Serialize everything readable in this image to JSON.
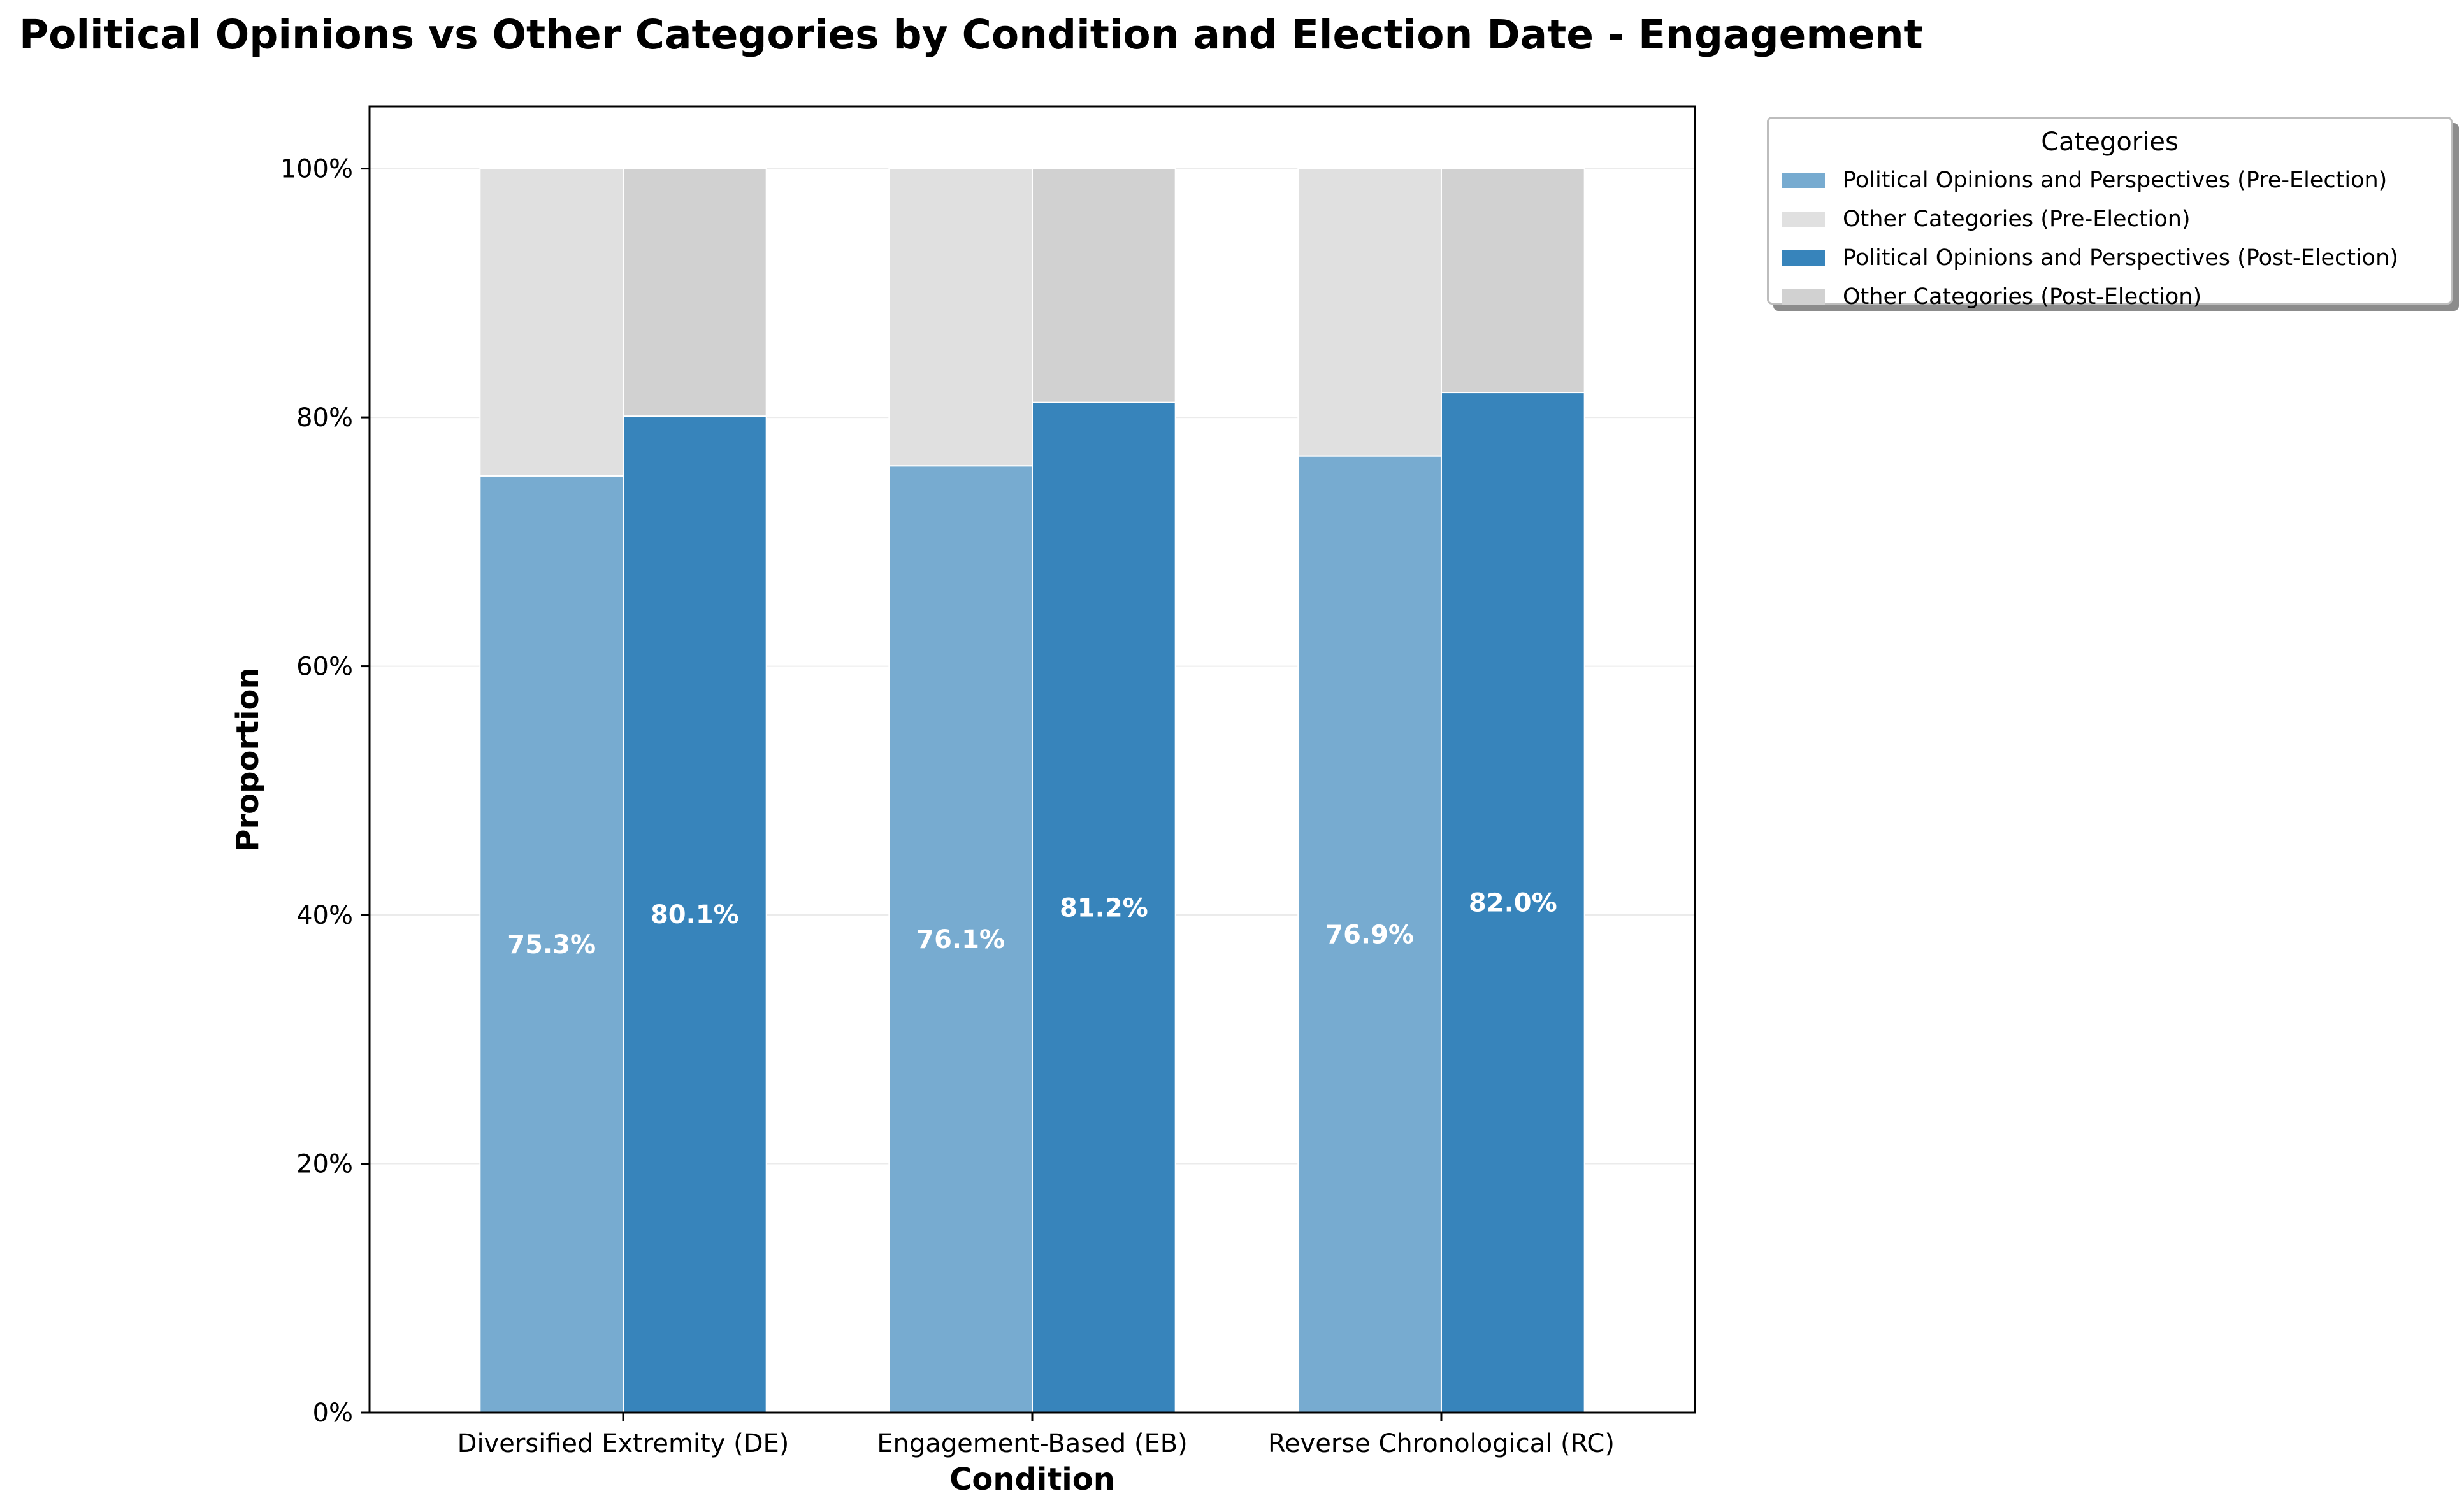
{
  "chart_data": {
    "type": "bar",
    "stacked": true,
    "title": "Political Opinions vs Other Categories by Condition and Election Date - Engagement",
    "xlabel": "Condition",
    "ylabel": "Proportion",
    "ylim": [
      0,
      1.05
    ],
    "yticks": [
      0,
      0.2,
      0.4,
      0.6,
      0.8,
      1.0
    ],
    "ytick_labels": [
      "0%",
      "20%",
      "40%",
      "60%",
      "80%",
      "100%"
    ],
    "grid": "horizontal",
    "legend_title": "Categories",
    "legend_position": "outside-top-right",
    "categories": [
      "Diversified Extremity (DE)",
      "Engagement-Based (EB)",
      "Reverse Chronological (RC)"
    ],
    "series": [
      {
        "name": "Political Opinions and Perspectives (Pre-Election)",
        "group": "Pre-Election",
        "color": "#77abd0",
        "values": [
          0.753,
          0.761,
          0.769
        ]
      },
      {
        "name": "Other Categories (Pre-Election)",
        "group": "Pre-Election",
        "color": "#e0e0e0",
        "values": [
          0.247,
          0.239,
          0.231
        ]
      },
      {
        "name": "Political Opinions and Perspectives (Post-Election)",
        "group": "Post-Election",
        "color": "#3784bb",
        "values": [
          0.801,
          0.812,
          0.82
        ]
      },
      {
        "name": "Other Categories (Post-Election)",
        "group": "Post-Election",
        "color": "#d1d1d1",
        "values": [
          0.199,
          0.188,
          0.18
        ]
      }
    ],
    "data_labels": {
      "Pre-Election": [
        "75.3%",
        "76.1%",
        "76.9%"
      ],
      "Post-Election": [
        "80.1%",
        "81.2%",
        "82.0%"
      ]
    }
  }
}
